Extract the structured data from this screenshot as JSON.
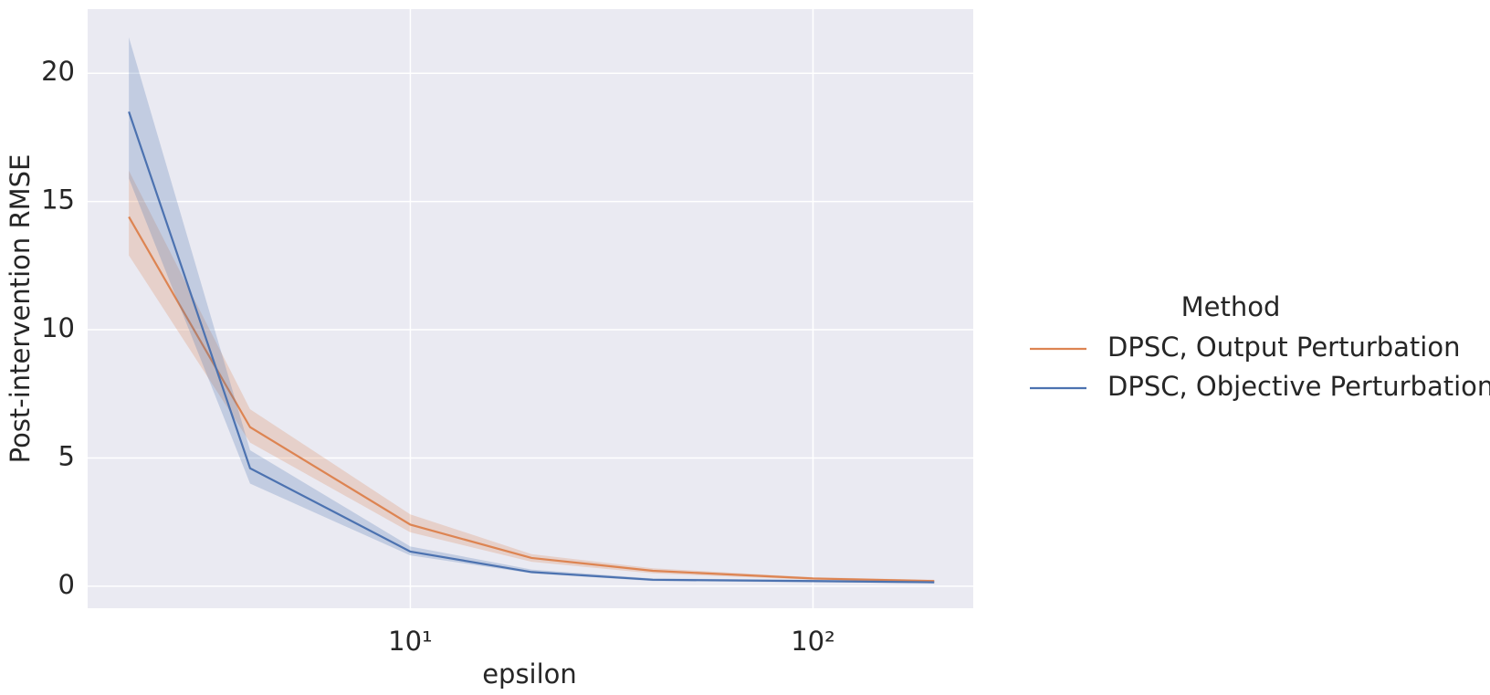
{
  "chart_data": {
    "type": "line",
    "x_label": "epsilon",
    "y_label": "Post-intervention RMSE",
    "x": [
      2,
      4,
      10,
      20,
      40,
      100,
      200
    ],
    "series": [
      {
        "name": "DPSC, Output Perturbation",
        "color": "#dd8452",
        "values": [
          14.4,
          6.2,
          2.4,
          1.1,
          0.6,
          0.3,
          0.2
        ],
        "lower": [
          12.9,
          5.6,
          2.1,
          0.95,
          0.5,
          0.25,
          0.15
        ],
        "upper": [
          16.2,
          6.9,
          2.8,
          1.25,
          0.7,
          0.35,
          0.25
        ]
      },
      {
        "name": "DPSC, Objective Perturbation",
        "color": "#4c72b0",
        "values": [
          18.5,
          4.6,
          1.35,
          0.55,
          0.25,
          0.2,
          0.15
        ],
        "lower": [
          15.9,
          4.0,
          1.2,
          0.5,
          0.2,
          0.15,
          0.12
        ],
        "upper": [
          21.4,
          5.3,
          1.55,
          0.65,
          0.3,
          0.25,
          0.2
        ]
      }
    ],
    "legend_title": "Method",
    "legend_position": "right",
    "xscale": "log",
    "xlim": [
      1.58,
      250
    ],
    "ylim": [
      -0.86,
      22.5
    ],
    "xticks": [
      {
        "value": 10,
        "label": "10¹"
      },
      {
        "value": 100,
        "label": "10²"
      }
    ],
    "yticks": [
      0,
      5,
      10,
      15,
      20
    ],
    "grid": true,
    "background": "#eaeaf2"
  }
}
